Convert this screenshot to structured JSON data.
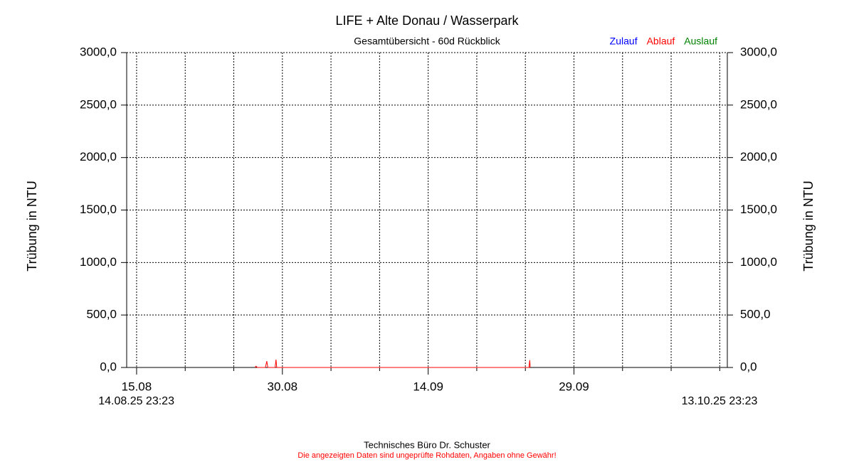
{
  "chart_data": {
    "type": "line",
    "title": "LIFE + Alte Donau / Wasserpark",
    "subtitle": "Gesamtübersicht - 60d Rückblick",
    "ylabel": "Trübung in NTU",
    "y2label": "Trübung in NTU",
    "ylim": [
      0,
      3000
    ],
    "yticks": [
      {
        "value": 0,
        "label": "0,0"
      },
      {
        "value": 500,
        "label": "500,0"
      },
      {
        "value": 1000,
        "label": "1000,0"
      },
      {
        "value": 1500,
        "label": "1500,0"
      },
      {
        "value": 2000,
        "label": "2000,0"
      },
      {
        "value": 2500,
        "label": "2500,0"
      },
      {
        "value": 3000,
        "label": "3000,0"
      }
    ],
    "xlim": [
      {
        "value": "2025-08-14T23:23",
        "label": "14.08.25 23:23"
      },
      {
        "value": "2025-10-13T23:23",
        "label": "13.10.25 23:23"
      }
    ],
    "xticks": [
      {
        "value": "2025-08-15T00:00",
        "label": "15.08"
      },
      {
        "value": "2025-08-20T00:00",
        "label": null
      },
      {
        "value": "2025-08-25T00:00",
        "label": null
      },
      {
        "value": "2025-08-30T00:00",
        "label": "30.08"
      },
      {
        "value": "2025-09-04T00:00",
        "label": null
      },
      {
        "value": "2025-09-09T00:00",
        "label": null
      },
      {
        "value": "2025-09-14T00:00",
        "label": "14.09"
      },
      {
        "value": "2025-09-19T00:00",
        "label": null
      },
      {
        "value": "2025-09-24T00:00",
        "label": null
      },
      {
        "value": "2025-09-29T00:00",
        "label": "29.09"
      },
      {
        "value": "2025-10-04T00:00",
        "label": null
      },
      {
        "value": "2025-10-09T00:00",
        "label": null
      },
      {
        "value": "2025-10-14T00:00",
        "label": null
      }
    ],
    "grid": true,
    "legend": "top-right",
    "series": [
      {
        "name": "Zulauf",
        "color": "#0000ff",
        "x": [],
        "values": []
      },
      {
        "name": "Ablauf",
        "color": "#ff0000",
        "x": [
          "2025-08-27T04:00",
          "2025-08-27T07:00",
          "2025-08-27T10:00",
          "2025-08-28T06:00",
          "2025-08-28T09:30",
          "2025-08-28T12:00",
          "2025-08-29T06:00",
          "2025-08-29T08:15",
          "2025-08-29T10:00",
          "2025-09-24T09:00",
          "2025-09-24T10:50",
          "2025-09-24T12:00"
        ],
        "values": [
          0,
          12,
          0,
          0,
          60,
          0,
          0,
          75,
          0,
          0,
          70,
          0
        ]
      },
      {
        "name": "Auslauf",
        "color": "#008000",
        "x": [],
        "values": []
      }
    ],
    "footer": "Technisches Büro Dr. Schuster",
    "disclaimer": "Die angezeigten Daten sind ungeprüfte Rohdaten, Angaben ohne Gewähr!"
  }
}
